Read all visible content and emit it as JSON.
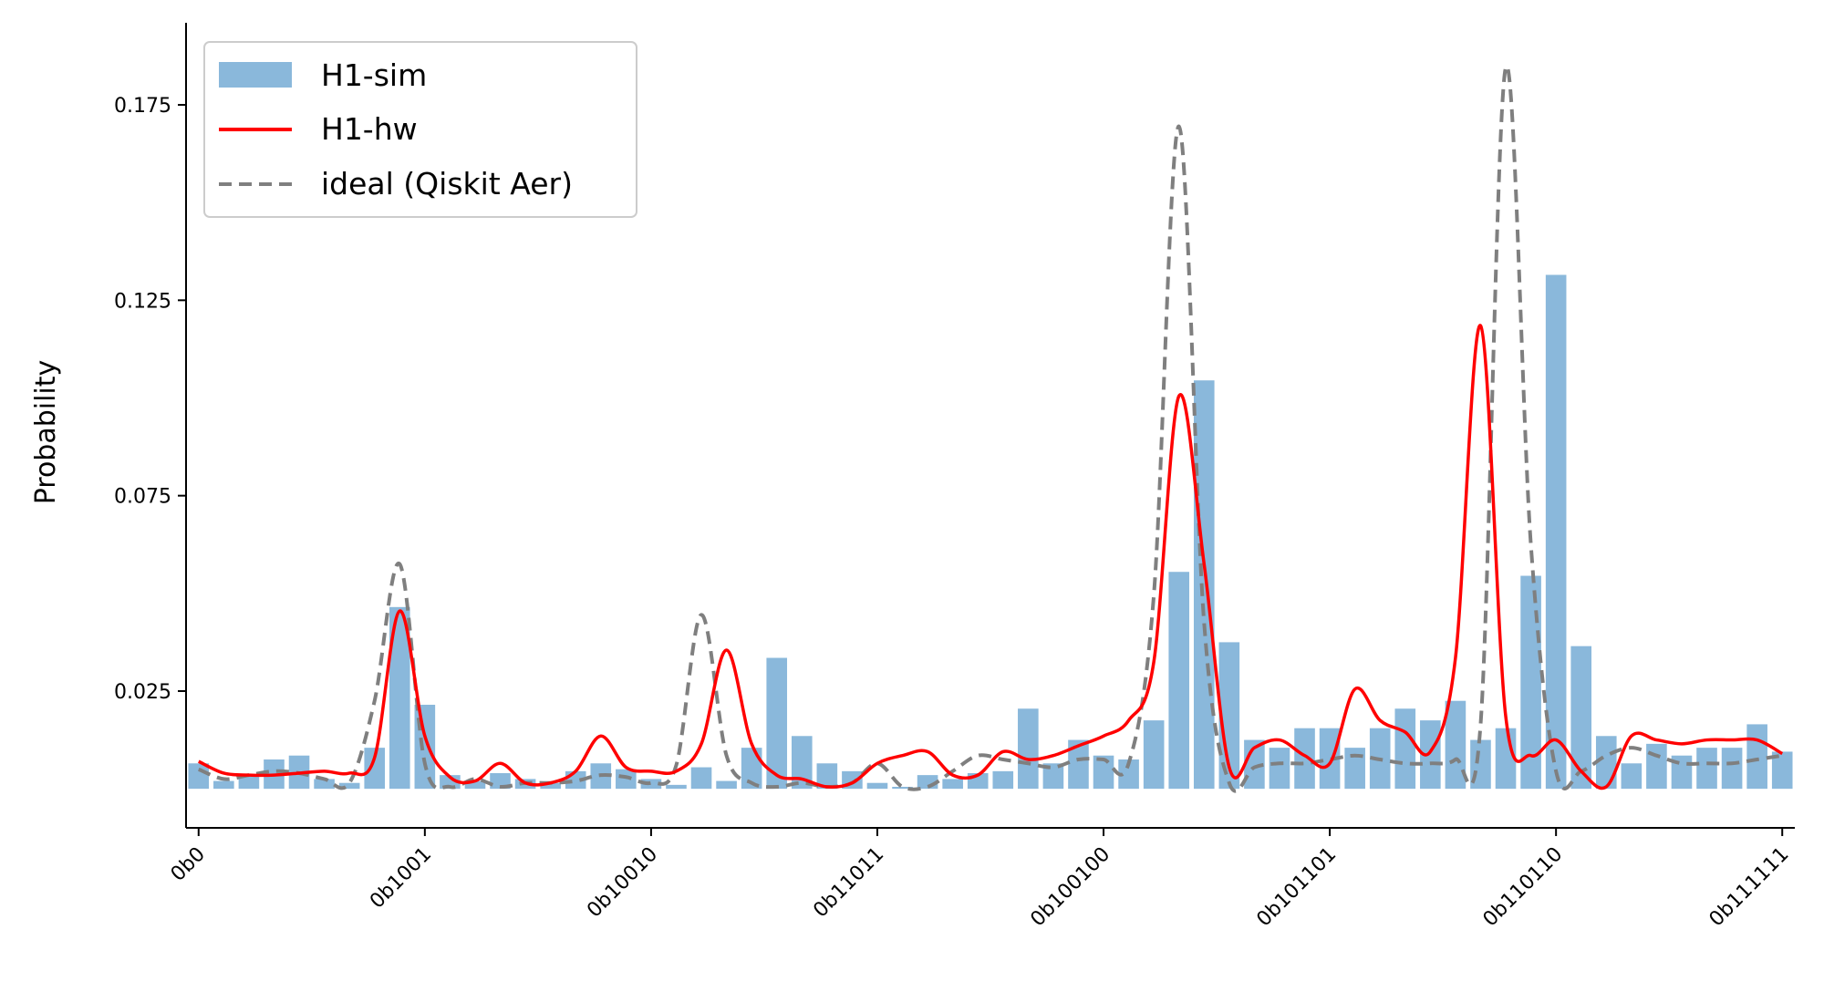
{
  "chart_data": {
    "type": "bar",
    "title": "",
    "xlabel": "",
    "ylabel": "Probability",
    "xlim": [
      -0.5,
      63.5
    ],
    "ylim": [
      -0.01,
      0.196
    ],
    "yticks": [
      0.025,
      0.075,
      0.125,
      0.175
    ],
    "ytick_labels": [
      "0.025",
      "0.075",
      "0.125",
      "0.175"
    ],
    "xticks": [
      0,
      9,
      18,
      27,
      36,
      45,
      54,
      63
    ],
    "xtick_labels": [
      "0b0",
      "0b1001",
      "0b10010",
      "0b11011",
      "0b100100",
      "0b101101",
      "0b110110",
      "0b111111"
    ],
    "grid": false,
    "legend_position": "top-left",
    "colors": {
      "bars": "#8ab8db",
      "hw": "#ff0000",
      "ideal": "#7f7f7f"
    },
    "series": [
      {
        "name": "H1-sim",
        "kind": "bar",
        "values": [
          0.0065,
          0.002,
          0.0035,
          0.0075,
          0.0085,
          0.0025,
          0.0015,
          0.0105,
          0.0465,
          0.0215,
          0.0035,
          0.002,
          0.004,
          0.0025,
          0.0015,
          0.0045,
          0.0065,
          0.005,
          0.0025,
          0.001,
          0.0055,
          0.002,
          0.0105,
          0.0335,
          0.0135,
          0.0065,
          0.0045,
          0.0015,
          0.0005,
          0.0035,
          0.0025,
          0.004,
          0.0045,
          0.0205,
          0.0065,
          0.0125,
          0.0085,
          0.0075,
          0.0175,
          0.0555,
          0.1045,
          0.0375,
          0.0125,
          0.0105,
          0.0155,
          0.0155,
          0.0105,
          0.0155,
          0.0205,
          0.0175,
          0.0225,
          0.0125,
          0.0155,
          0.0545,
          0.1315,
          0.0365,
          0.0135,
          0.0065,
          0.0115,
          0.0085,
          0.0105,
          0.0105,
          0.0165,
          0.0095
        ]
      },
      {
        "name": "H1-hw",
        "kind": "line",
        "values": [
          0.007,
          0.004,
          0.0035,
          0.0035,
          0.004,
          0.0045,
          0.004,
          0.008,
          0.0455,
          0.0135,
          0.003,
          0.002,
          0.0065,
          0.0015,
          0.0015,
          0.0045,
          0.0135,
          0.0055,
          0.0045,
          0.0045,
          0.0115,
          0.0355,
          0.0115,
          0.0035,
          0.0025,
          0.0005,
          0.0015,
          0.0065,
          0.0085,
          0.0095,
          0.0035,
          0.0035,
          0.0095,
          0.0075,
          0.0085,
          0.011,
          0.0135,
          0.0175,
          0.0325,
          0.1005,
          0.0575,
          0.0055,
          0.0105,
          0.0125,
          0.0085,
          0.0065,
          0.0255,
          0.0175,
          0.0145,
          0.0095,
          0.0335,
          0.1185,
          0.0185,
          0.0085,
          0.0125,
          0.0045,
          0.0005,
          0.0135,
          0.0125,
          0.0115,
          0.0125,
          0.0125,
          0.0125,
          0.009
        ]
      },
      {
        "name": "ideal (Qiskit Aer)",
        "kind": "dashed-line",
        "values": [
          0.005,
          0.0025,
          0.0035,
          0.0045,
          0.004,
          0.0025,
          0.0015,
          0.0225,
          0.0575,
          0.0065,
          0.0005,
          0.0025,
          0.0005,
          0.0015,
          0.0015,
          0.002,
          0.0035,
          0.003,
          0.0015,
          0.006,
          0.0445,
          0.0085,
          0.0015,
          0.0005,
          0.0015,
          0.0005,
          0.0015,
          0.0065,
          0.0005,
          0.0005,
          0.0045,
          0.0085,
          0.0075,
          0.0065,
          0.0055,
          0.0075,
          0.0075,
          0.0065,
          0.0495,
          0.1695,
          0.0425,
          0.0015,
          0.0055,
          0.0065,
          0.0065,
          0.0075,
          0.0085,
          0.0075,
          0.0065,
          0.0065,
          0.0075,
          0.0165,
          0.1845,
          0.0625,
          0.0045,
          0.0045,
          0.0085,
          0.0105,
          0.0085,
          0.0065,
          0.0065,
          0.0065,
          0.0075,
          0.0085
        ]
      }
    ]
  }
}
